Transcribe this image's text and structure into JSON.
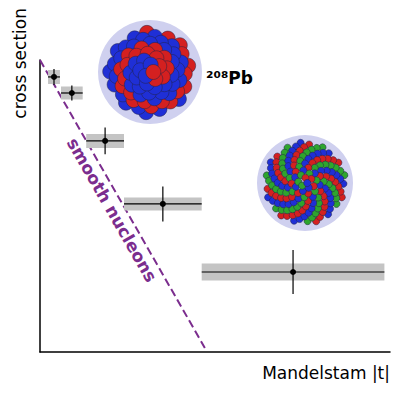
{
  "chart_data": {
    "type": "scatter",
    "x_label": "Mandelstam |t|",
    "y_label": "cross section",
    "annotations": [
      "²⁰⁸Pb"
    ],
    "xlim": [
      0,
      10
    ],
    "ylim": [
      0,
      10
    ],
    "tick_labels": false,
    "grid": false,
    "series": [
      {
        "type": "scatter",
        "color": "#000000",
        "marker": "circle",
        "x": [
          0.4,
          0.91,
          1.86,
          3.51,
          7.23
        ],
        "values": [
          9.42,
          8.87,
          7.23,
          5.07,
          2.74
        ],
        "xerr": [
          0.17,
          0.31,
          0.54,
          1.11,
          2.61
        ],
        "yerr": [
          0.27,
          0.26,
          0.46,
          0.6,
          0.75
        ],
        "sys_yerr": [
          0.24,
          0.22,
          0.24,
          0.22,
          0.29
        ]
      },
      {
        "name": "smooth nucleons",
        "type": "line",
        "line_style": "dashed",
        "color": "#7b2d8e",
        "x": [
          0,
          4.71
        ],
        "values": [
          10,
          0.14
        ]
      }
    ]
  }
}
